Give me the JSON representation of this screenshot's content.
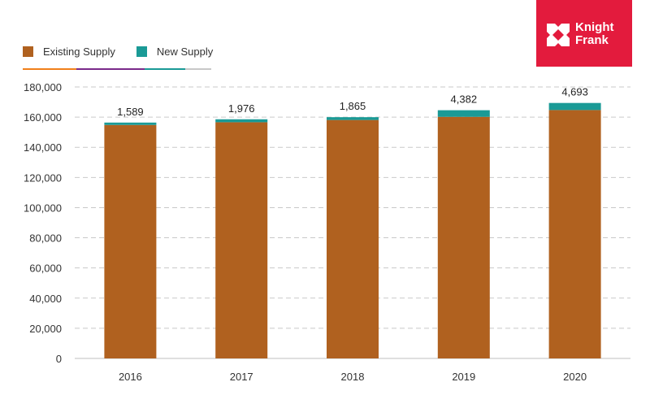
{
  "brand": {
    "line1": "Knight",
    "line2": "Frank",
    "color": "#e31b3d"
  },
  "chart_data": {
    "type": "bar",
    "stacked": true,
    "categories": [
      "2016",
      "2017",
      "2018",
      "2019",
      "2020"
    ],
    "series": [
      {
        "name": "Existing Supply",
        "color": "#b0611f",
        "values": [
          154800,
          156600,
          158100,
          160200,
          164700
        ]
      },
      {
        "name": "New Supply",
        "color": "#1a9a96",
        "values": [
          1589,
          1976,
          1865,
          4382,
          4693
        ]
      }
    ],
    "data_labels": [
      "1,589",
      "1,976",
      "1,865",
      "4,382",
      "4,693"
    ],
    "ylim": [
      0,
      180000
    ],
    "yticks": [
      0,
      20000,
      40000,
      60000,
      80000,
      100000,
      120000,
      140000,
      160000,
      180000
    ],
    "ytick_labels": [
      "0",
      "20,000",
      "40,000",
      "60,000",
      "80,000",
      "100,000",
      "120,000",
      "140,000",
      "160,000",
      "180,000"
    ],
    "grid": true,
    "legend_position": "top-left",
    "legend_underline_colors": [
      "#f07f1a",
      "#7a2a8a",
      "#1a9a96",
      "#c8c8c8"
    ],
    "title": "",
    "xlabel": "",
    "ylabel": ""
  }
}
